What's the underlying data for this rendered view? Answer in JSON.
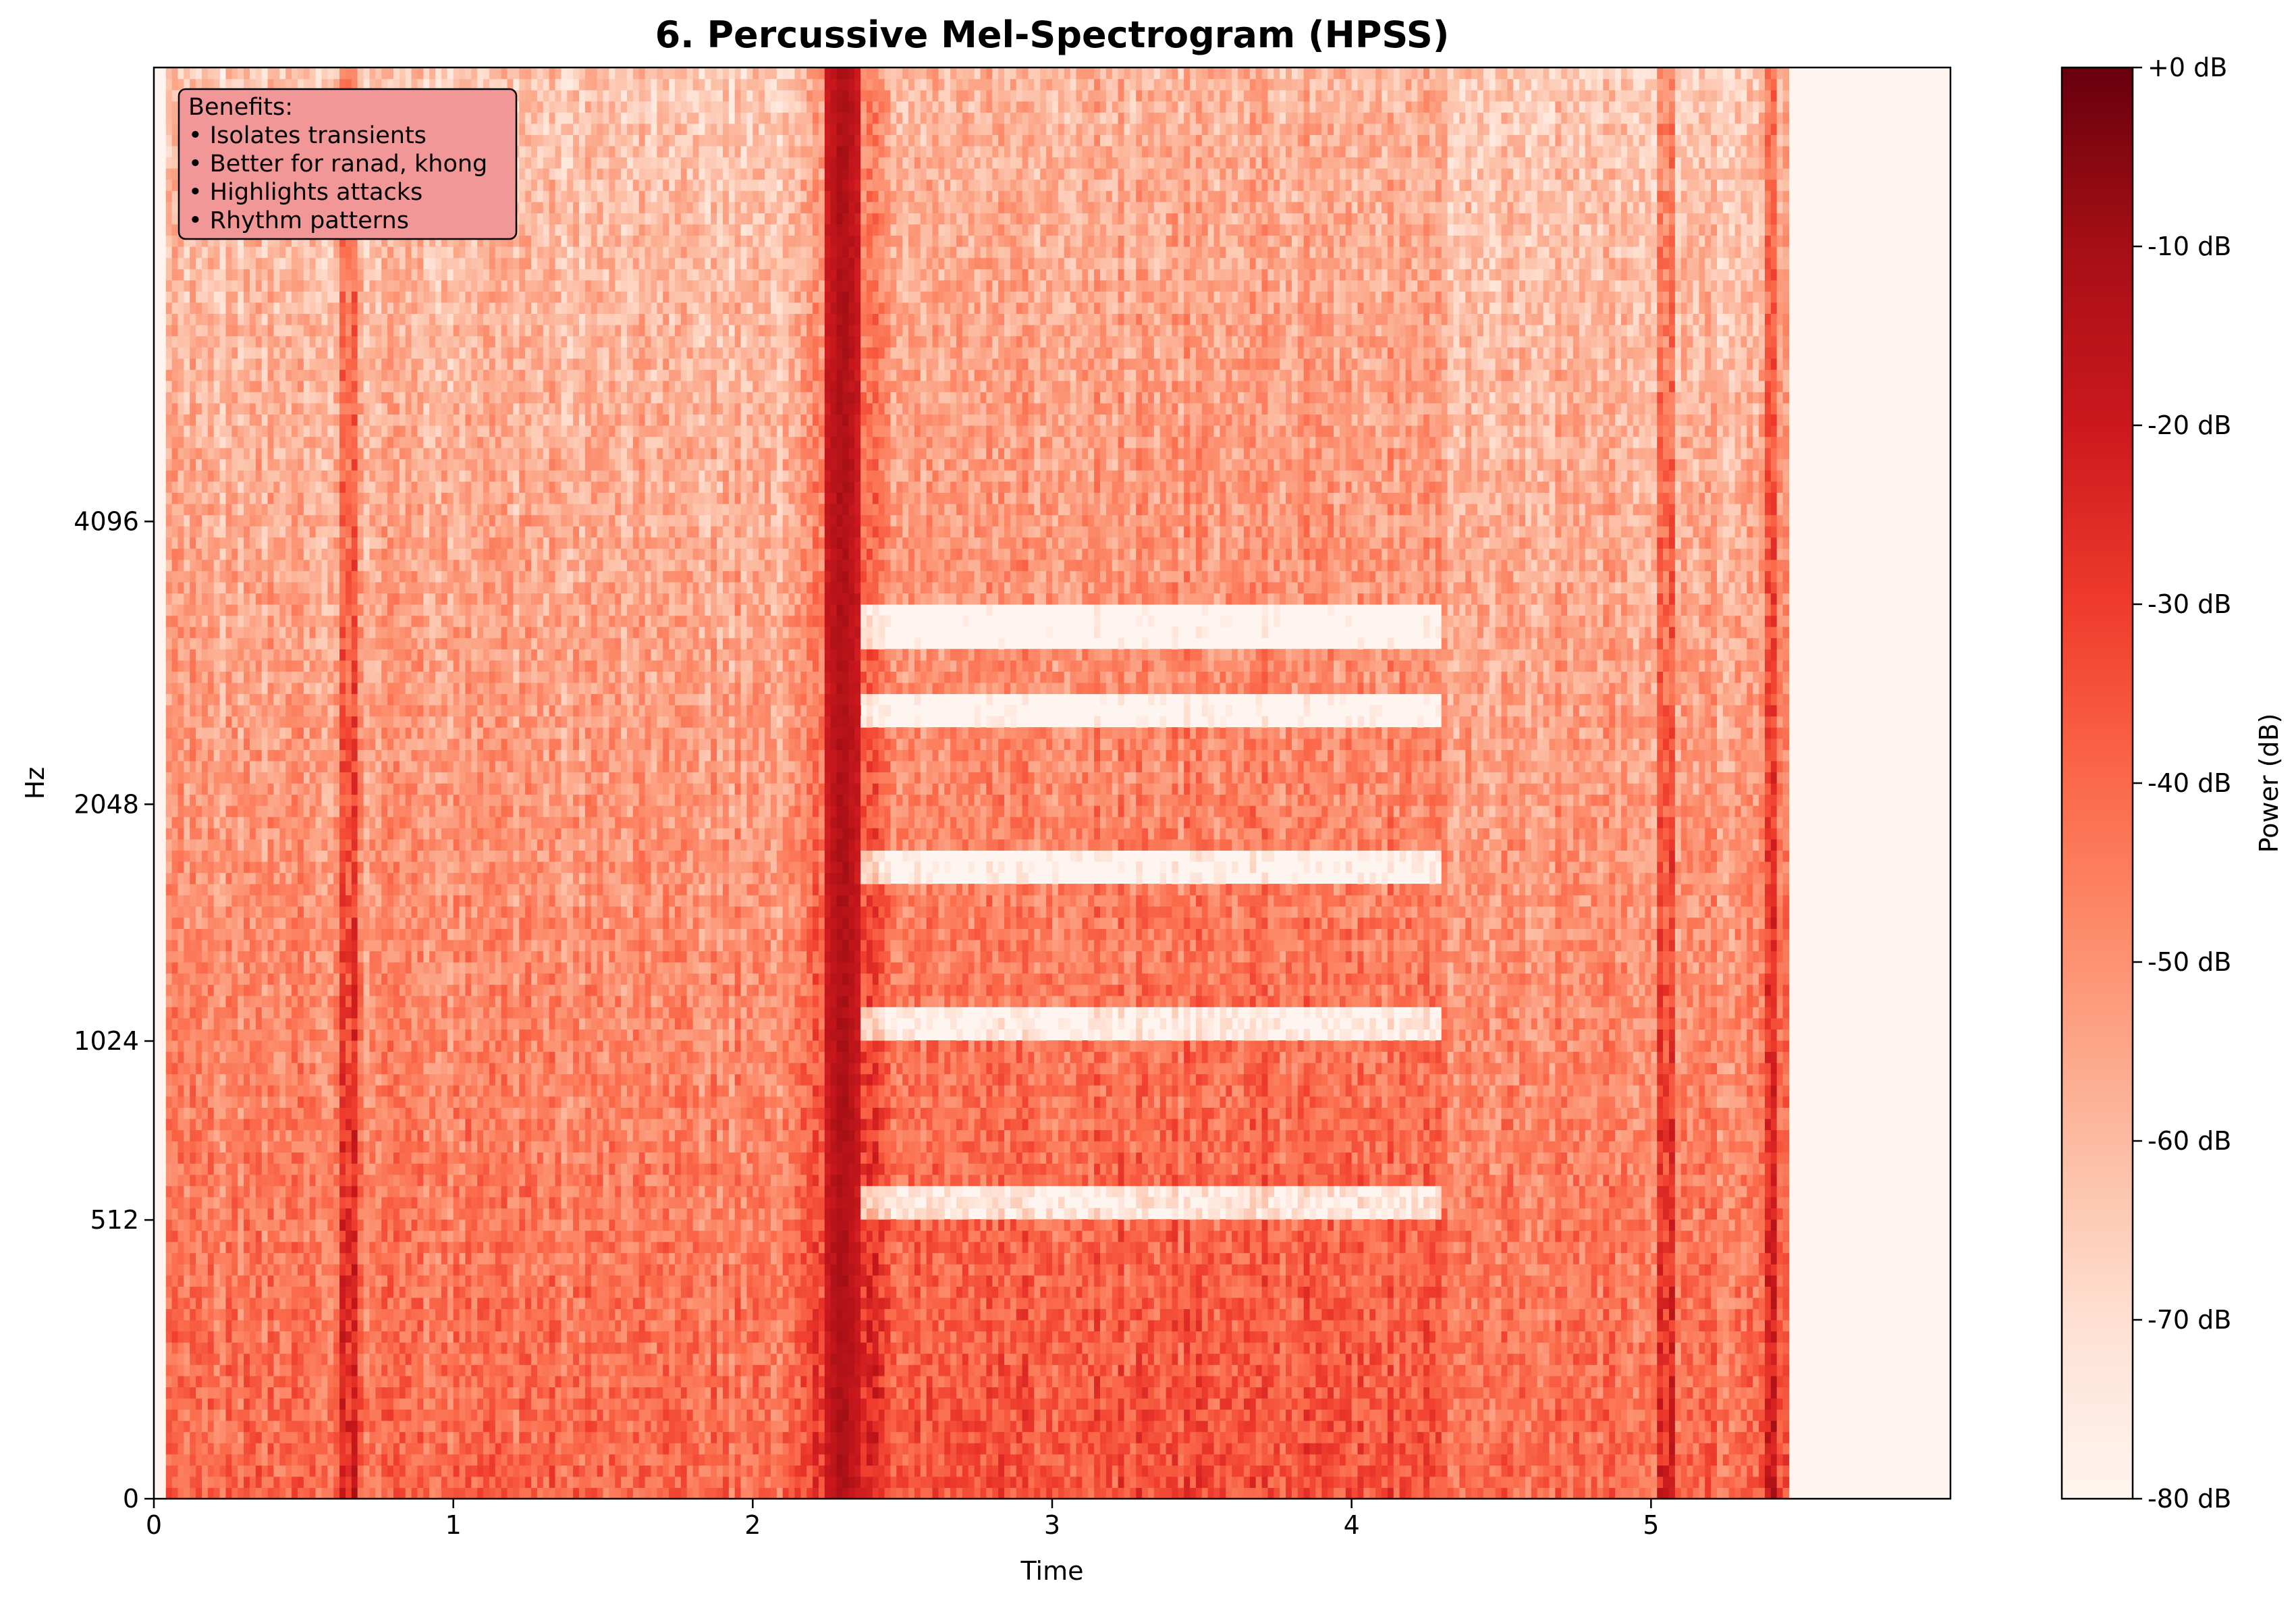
{
  "chart_data": {
    "type": "heatmap",
    "title": "6. Percussive Mel-Spectrogram (HPSS)",
    "xlabel": "Time",
    "ylabel": "Hz",
    "xlim": [
      0,
      6.0
    ],
    "x_ticks": [
      0,
      1,
      2,
      3,
      4,
      5
    ],
    "x_tick_labels": [
      "0",
      "1",
      "2",
      "3",
      "4",
      "5"
    ],
    "y_scale": "mel",
    "y_ticks": [
      0,
      512,
      1024,
      2048,
      4096
    ],
    "y_tick_labels": [
      "0",
      "512",
      "1024",
      "2048",
      "4096"
    ],
    "colormap": "Reds",
    "colorbar": {
      "label": "Power (dB)",
      "range": [
        -80,
        0
      ],
      "ticks": [
        0,
        -10,
        -20,
        -30,
        -40,
        -50,
        -60,
        -70,
        -80
      ],
      "tick_labels": [
        "+0 dB",
        "-10 dB",
        "-20 dB",
        "-30 dB",
        "-40 dB",
        "-50 dB",
        "-60 dB",
        "-70 dB",
        "-80 dB"
      ]
    },
    "annotation": {
      "lines": [
        "Benefits:",
        "• Isolates transients",
        "• Better for ranad, khong",
        "• Highlights attacks",
        "• Rhythm patterns"
      ],
      "background": "#f19797",
      "placement": "top-left"
    },
    "features": {
      "signal_span_s": [
        0.05,
        5.45
      ],
      "strong_onset_s": 2.3,
      "dense_region_s": [
        2.3,
        4.3
      ],
      "quiet_bands_hz_in_dense_region": [
        560,
        1100,
        1750,
        2600,
        3200
      ],
      "thin_transients_s": [
        0.65,
        5.05,
        5.4
      ]
    }
  }
}
